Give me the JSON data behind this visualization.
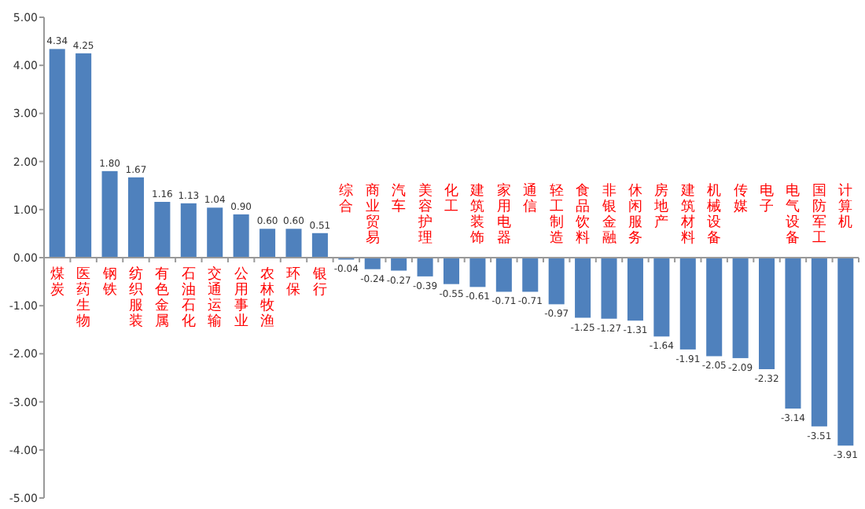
{
  "chart_data": {
    "type": "bar",
    "categories": [
      "煤炭",
      "医药生物",
      "钢铁",
      "纺织服装",
      "有色金属",
      "石油石化",
      "交通运输",
      "公用事业",
      "农林牧渔",
      "环保",
      "银行",
      "综合",
      "商业贸易",
      "汽车",
      "美容护理",
      "化工",
      "建筑装饰",
      "家用电器",
      "通信",
      "轻工制造",
      "食品饮料",
      "非银金融",
      "休闲服务",
      "房地产",
      "建筑材料",
      "机械设备",
      "传媒",
      "电子",
      "电气设备",
      "国防军工",
      "计算机"
    ],
    "values": [
      4.34,
      4.25,
      1.8,
      1.67,
      1.16,
      1.13,
      1.04,
      0.9,
      0.6,
      0.6,
      0.51,
      -0.04,
      -0.24,
      -0.27,
      -0.39,
      -0.55,
      -0.61,
      -0.71,
      -0.71,
      -0.97,
      -1.25,
      -1.27,
      -1.31,
      -1.64,
      -1.91,
      -2.05,
      -2.09,
      -2.32,
      -3.14,
      -3.51,
      -3.91
    ],
    "value_labels": [
      "4.34",
      "4.25",
      "1.80",
      "1.67",
      "1.16",
      "1.13",
      "1.04",
      "0.90",
      "0.60",
      "0.60",
      "0.51",
      "-0.04",
      "-0.24",
      "-0.27",
      "-0.39",
      "-0.55",
      "-0.61",
      "-0.71",
      "-0.71",
      "-0.97",
      "-1.25",
      "-1.27",
      "-1.31",
      "-1.64",
      "-1.91",
      "-2.05",
      "-2.09",
      "-2.32",
      "-3.14",
      "-3.51",
      "-3.91"
    ],
    "color": "#4f81bd",
    "ylim": [
      -5,
      5
    ],
    "yticks": [
      {
        "value": 5,
        "label": "5.00"
      },
      {
        "value": 4,
        "label": "4.00"
      },
      {
        "value": 3,
        "label": "3.00"
      },
      {
        "value": 2,
        "label": "2.00"
      },
      {
        "value": 1,
        "label": "1.00"
      },
      {
        "value": 0,
        "label": "0.00"
      },
      {
        "value": -1,
        "label": "-1.00"
      },
      {
        "value": -2,
        "label": "-2.00"
      },
      {
        "value": -3,
        "label": "-3.00"
      },
      {
        "value": -4,
        "label": "-4.00"
      },
      {
        "value": -5,
        "label": "-5.00"
      }
    ]
  }
}
